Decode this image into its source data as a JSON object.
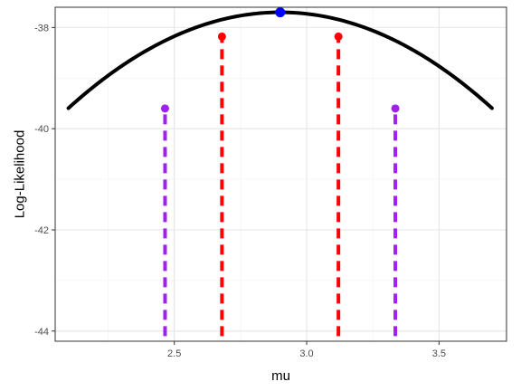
{
  "chart_data": {
    "type": "line",
    "xlabel": "mu",
    "ylabel": "Log-Likelihood",
    "xlim": [
      2.05,
      3.755
    ],
    "ylim": [
      -44.2,
      -37.6
    ],
    "x_ticks": [
      2.5,
      3.0,
      3.5
    ],
    "x_tick_labels": [
      "2.5",
      "3.0",
      "3.5"
    ],
    "x_minor_ticks": [
      2.25,
      2.75,
      3.25,
      3.75
    ],
    "y_ticks": [
      -44,
      -42,
      -40,
      -38
    ],
    "y_tick_labels": [
      "-44",
      "-42",
      "-40",
      "-38"
    ],
    "y_minor_ticks": [
      -43,
      -41,
      -39
    ],
    "grid": true,
    "curve": {
      "x_range": [
        2.1,
        3.7
      ],
      "peak": {
        "x": 2.9,
        "y": -37.7
      },
      "curvature": 2.96,
      "color": "#000000"
    },
    "points": [
      {
        "x": 2.9,
        "y": -37.7,
        "color": "#0000ff"
      },
      {
        "x": 2.68,
        "y": -38.18,
        "color": "#ff0000"
      },
      {
        "x": 3.12,
        "y": -38.18,
        "color": "#ff0000"
      },
      {
        "x": 2.465,
        "y": -39.6,
        "color": "#a020f0"
      },
      {
        "x": 3.335,
        "y": -39.6,
        "color": "#a020f0"
      }
    ],
    "vlines": [
      {
        "x": 2.68,
        "y_from": -44.1,
        "y_to": -38.18,
        "color": "#ff0000"
      },
      {
        "x": 3.12,
        "y_from": -44.1,
        "y_to": -38.18,
        "color": "#ff0000"
      },
      {
        "x": 2.465,
        "y_from": -44.1,
        "y_to": -39.6,
        "color": "#a020f0"
      },
      {
        "x": 3.335,
        "y_from": -44.1,
        "y_to": -39.6,
        "color": "#a020f0"
      }
    ]
  }
}
